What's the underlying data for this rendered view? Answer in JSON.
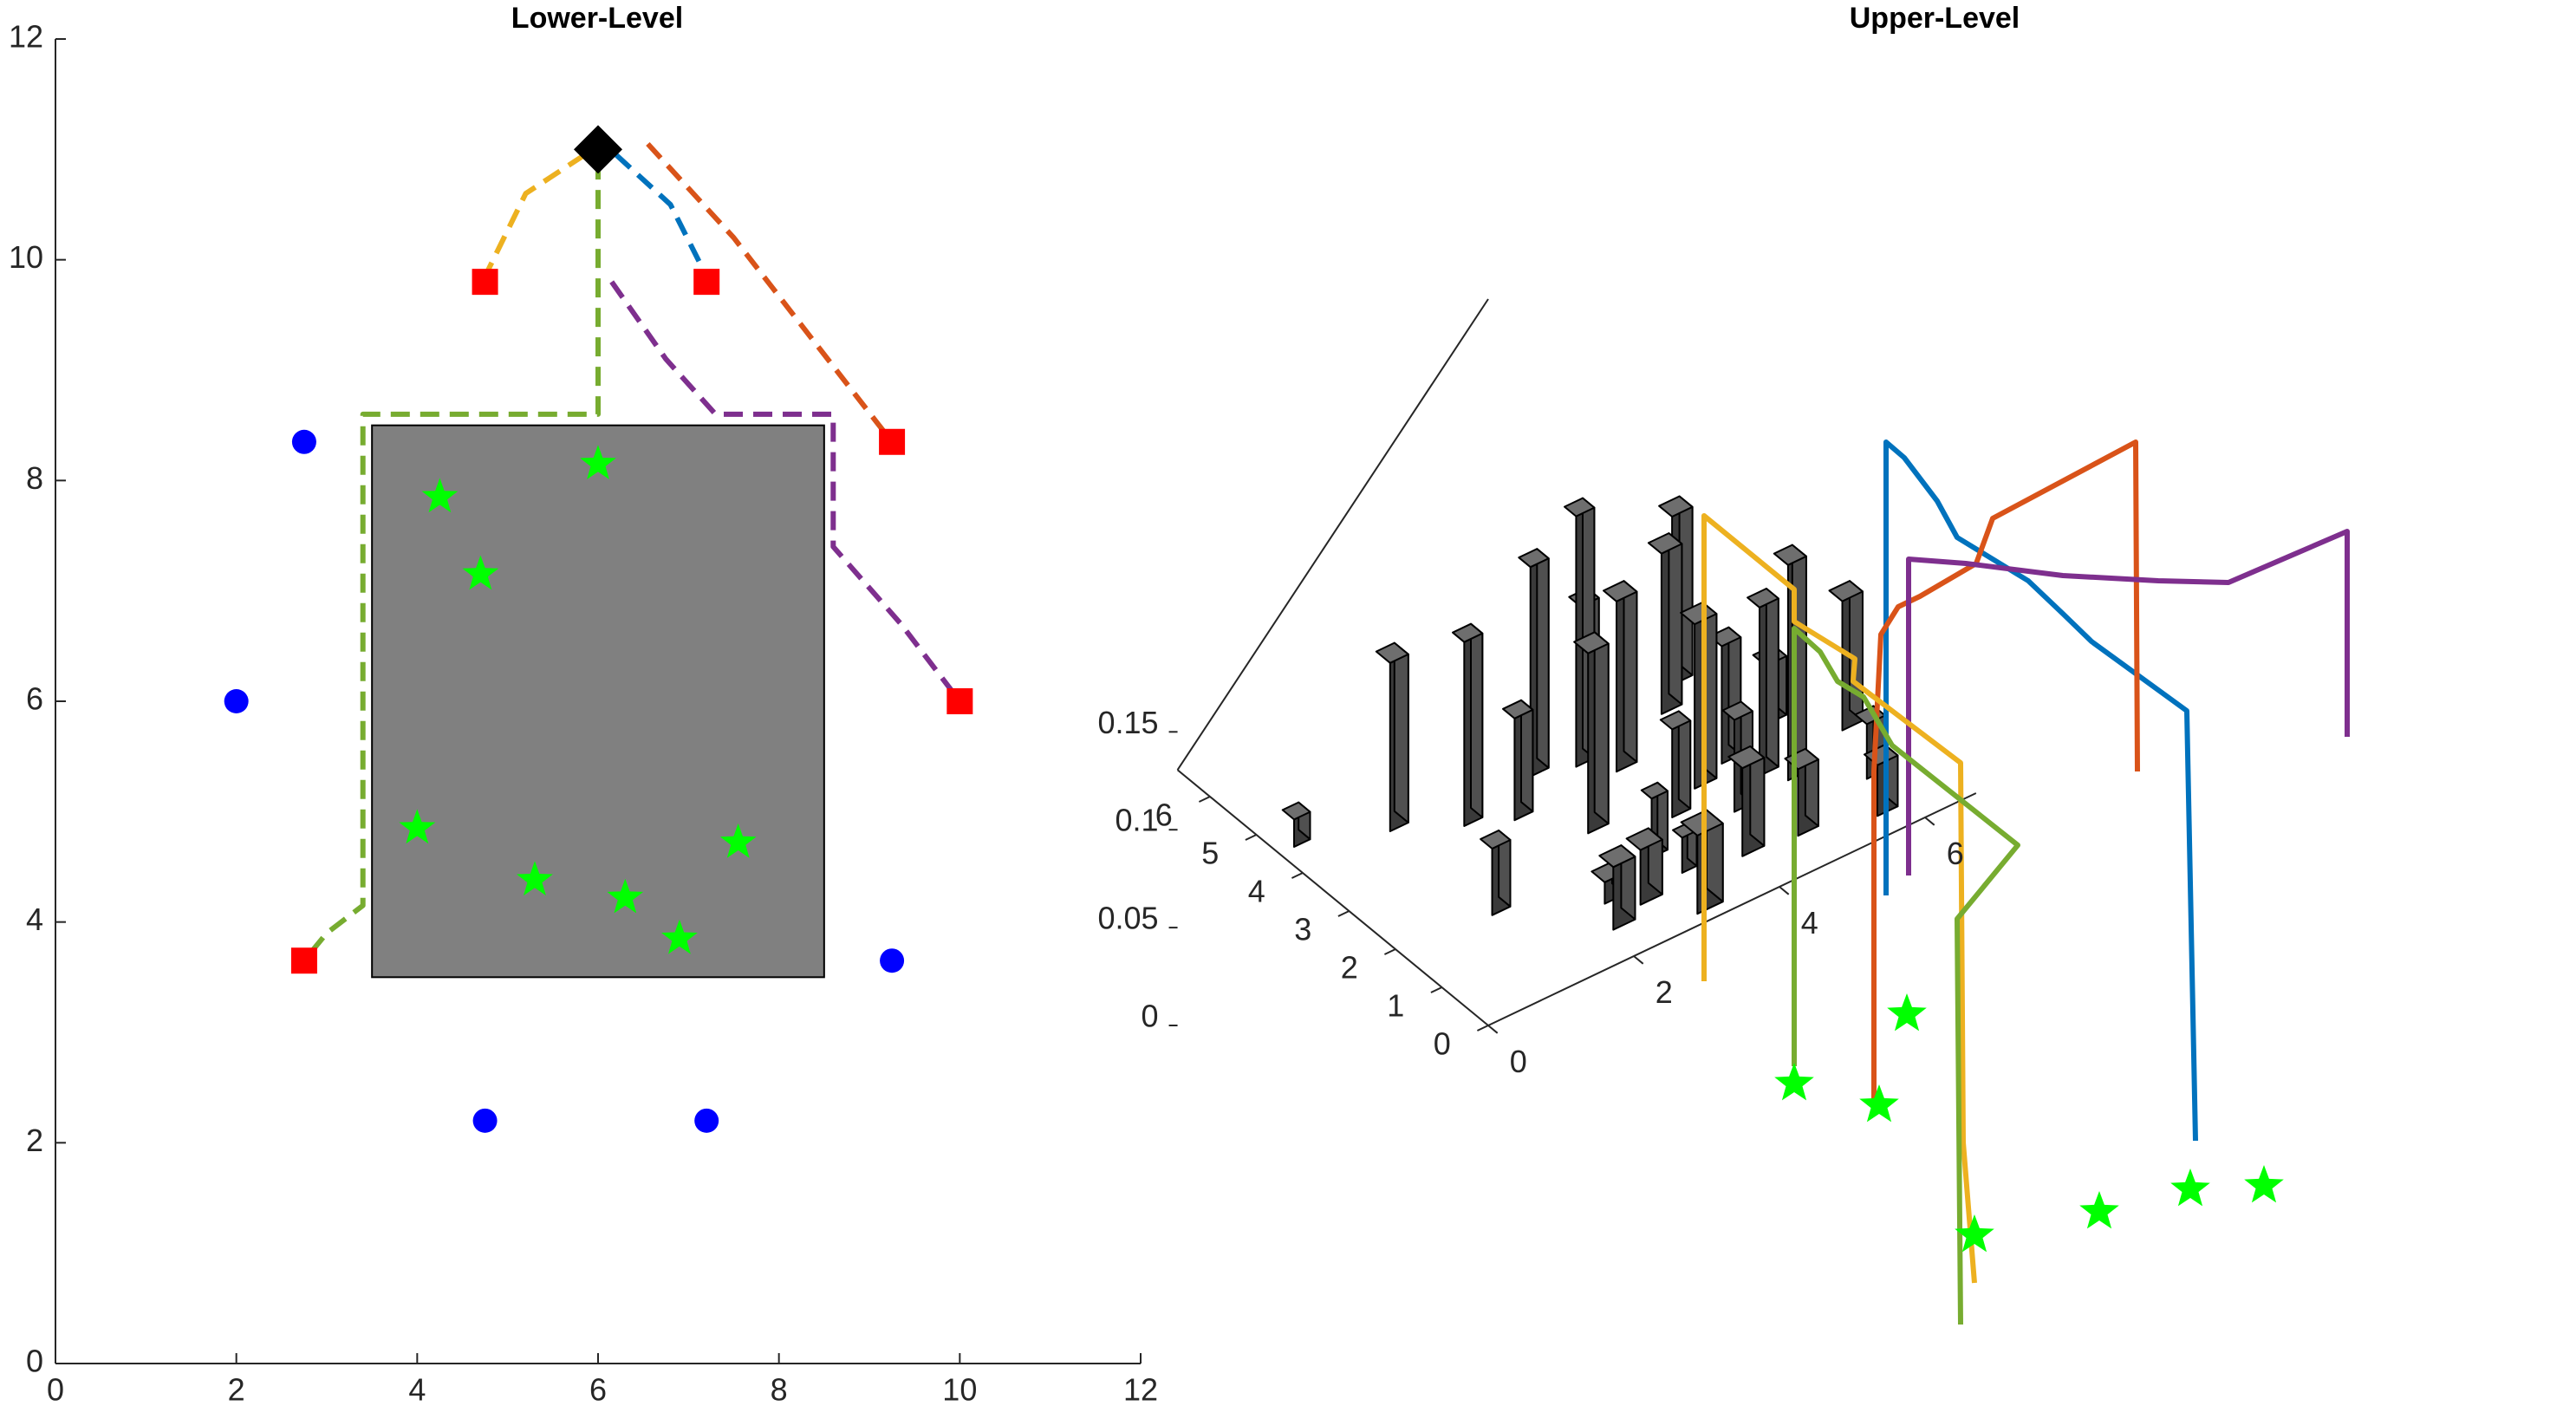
{
  "chart_data": [
    {
      "type": "scatter",
      "title": "Lower-Level",
      "xlim": [
        0,
        12
      ],
      "ylim": [
        0,
        12
      ],
      "xticks": [
        0,
        2,
        4,
        6,
        8,
        10,
        12
      ],
      "yticks": [
        0,
        2,
        4,
        6,
        8,
        10,
        12
      ],
      "tick_labels": [
        "0",
        "2",
        "4",
        "6",
        "8",
        "10",
        "12"
      ],
      "obstacle": {
        "x": [
          3.5,
          8.5
        ],
        "y": [
          3.5,
          8.5
        ],
        "color": "#808080"
      },
      "depot": {
        "x": 6,
        "y": 11,
        "color": "#000000"
      },
      "blue_points": [
        [
          2.75,
          8.35
        ],
        [
          2,
          6
        ],
        [
          9.25,
          3.65
        ],
        [
          4.75,
          2.2
        ],
        [
          7.2,
          2.2
        ]
      ],
      "red_squares": [
        [
          4.75,
          9.8
        ],
        [
          7.2,
          9.8
        ],
        [
          9.25,
          8.35
        ],
        [
          10,
          6
        ],
        [
          2.75,
          3.65
        ]
      ],
      "green_stars": [
        [
          6,
          8.15
        ],
        [
          4.25,
          7.85
        ],
        [
          4.7,
          7.15
        ],
        [
          4,
          4.85
        ],
        [
          5.3,
          4.38
        ],
        [
          6.3,
          4.22
        ],
        [
          7.55,
          4.72
        ],
        [
          6.9,
          3.85
        ]
      ],
      "paths": [
        {
          "color": "#EDB120",
          "points": [
            [
              5.85,
              10.95
            ],
            [
              5.2,
              10.6
            ],
            [
              4.75,
              9.85
            ]
          ]
        },
        {
          "color": "#0072BD",
          "points": [
            [
              6.2,
              10.95
            ],
            [
              6.8,
              10.5
            ],
            [
              7.2,
              9.85
            ]
          ]
        },
        {
          "color": "#D95319",
          "points": [
            [
              6.55,
              11.05
            ],
            [
              7.5,
              10.2
            ],
            [
              8.35,
              9.3
            ],
            [
              9.25,
              8.35
            ]
          ]
        },
        {
          "color": "#7E2F8E",
          "points": [
            [
              6.15,
              9.8
            ],
            [
              6.75,
              9.1
            ],
            [
              7.3,
              8.6
            ],
            [
              8.6,
              8.6
            ],
            [
              8.6,
              7.4
            ],
            [
              9.35,
              6.7
            ],
            [
              10,
              6
            ]
          ]
        },
        {
          "color": "#77AC30",
          "points": [
            [
              6,
              10.9
            ],
            [
              6,
              8.6
            ],
            [
              3.4,
              8.6
            ],
            [
              3.4,
              4.15
            ],
            [
              3,
              3.9
            ],
            [
              2.75,
              3.65
            ]
          ]
        }
      ]
    },
    {
      "type": "bar3d",
      "title": "Upper-Level",
      "zlim": [
        0,
        0.2
      ],
      "zticks": [
        "0",
        "0.05",
        "0.1",
        "0.15"
      ],
      "xticks": [
        "0",
        "2",
        "4",
        "6"
      ],
      "yticks": [
        "0",
        "1",
        "2",
        "3",
        "4",
        "5",
        "6"
      ],
      "bar_color": "#404040",
      "star_color": "#00FF00",
      "series": [
        {
          "color": "#0072BD"
        },
        {
          "color": "#D95319"
        },
        {
          "color": "#7E2F8E"
        },
        {
          "color": "#EDB120"
        },
        {
          "color": "#77AC30"
        }
      ]
    }
  ]
}
